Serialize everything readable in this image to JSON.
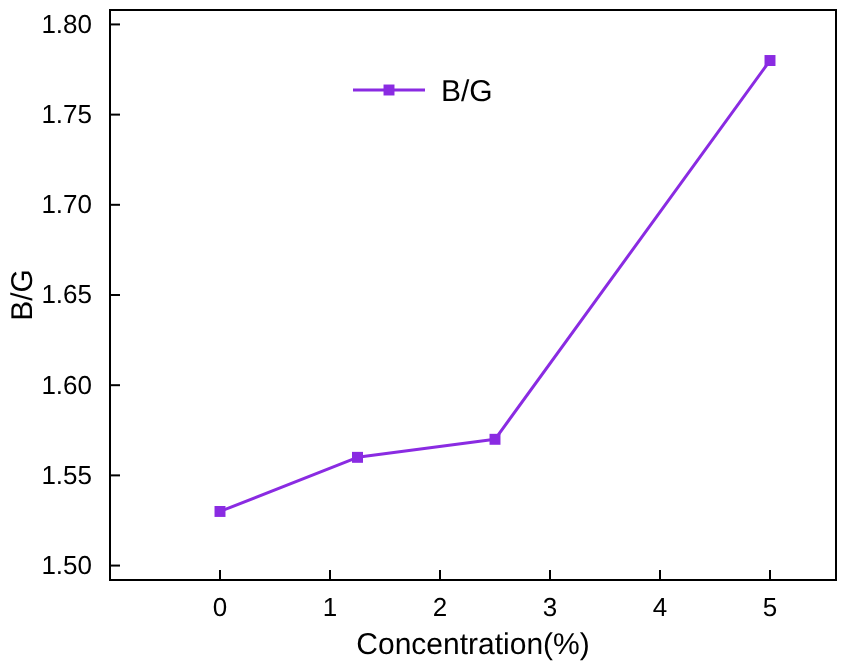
{
  "chart_data": {
    "type": "line",
    "xlabel": "Concentration(%)",
    "ylabel": "B/G",
    "x": [
      0,
      1.25,
      2.5,
      5
    ],
    "series": [
      {
        "name": "B/G",
        "color": "#8a2be2",
        "values": [
          1.53,
          1.56,
          1.57,
          1.78
        ]
      }
    ],
    "xlim": [
      -1,
      5.6
    ],
    "xticks": [
      0,
      1,
      2,
      3,
      4,
      5
    ],
    "ylim": [
      1.492,
      1.808
    ],
    "yticks": [
      {
        "value": 1.5,
        "label": "1.50"
      },
      {
        "value": 1.55,
        "label": "1.55"
      },
      {
        "value": 1.6,
        "label": "1.60"
      },
      {
        "value": 1.65,
        "label": "1.65"
      },
      {
        "value": 1.7,
        "label": "1.70"
      },
      {
        "value": 1.75,
        "label": "1.75"
      },
      {
        "value": 1.8,
        "label": "1.80"
      }
    ],
    "marker": "square",
    "line_style": "solid",
    "grid": false,
    "legend": "top"
  }
}
